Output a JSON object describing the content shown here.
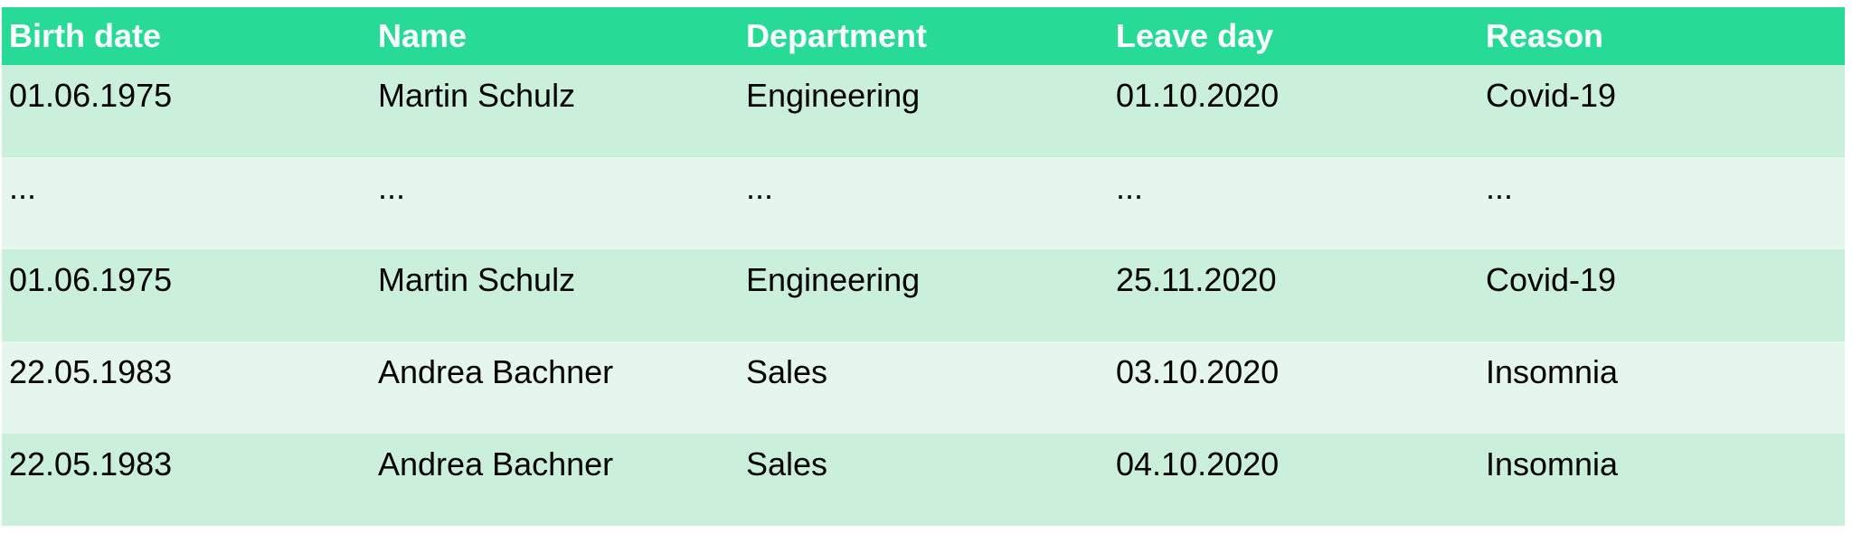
{
  "colors": {
    "header": "#27db97",
    "row_odd": "#caf0dc",
    "row_even": "#e5f7ec"
  },
  "table": {
    "headers": [
      "Birth date",
      "Name",
      "Department",
      "Leave day",
      "Reason"
    ],
    "rows": [
      [
        "01.06.1975",
        "Martin Schulz",
        "Engineering",
        "01.10.2020",
        "Covid-19"
      ],
      [
        "...",
        "...",
        "...",
        "...",
        "..."
      ],
      [
        "01.06.1975",
        "Martin Schulz",
        "Engineering",
        "25.11.2020",
        "Covid-19"
      ],
      [
        "22.05.1983",
        "Andrea Bachner",
        "Sales",
        "03.10.2020",
        "Insomnia"
      ],
      [
        "22.05.1983",
        "Andrea Bachner",
        "Sales",
        "04.10.2020",
        "Insomnia"
      ]
    ]
  }
}
